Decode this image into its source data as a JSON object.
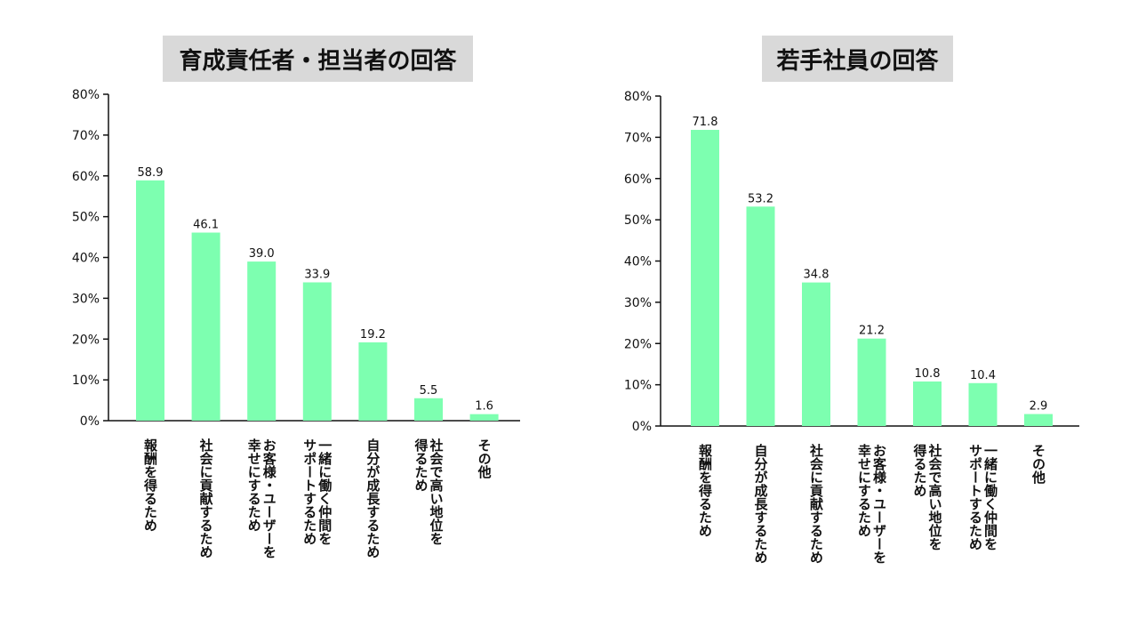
{
  "colors": {
    "bar": "#7dffb0",
    "axis": "#111111",
    "title_bg": "#d9d9d9"
  },
  "chart_data": [
    {
      "type": "bar",
      "title": "育成責任者・担当者の回答",
      "ylim": [
        0,
        80
      ],
      "yticks": [
        "0%",
        "10%",
        "20%",
        "30%",
        "40%",
        "50%",
        "60%",
        "70%",
        "80%"
      ],
      "categories": [
        [
          "報酬を得るため"
        ],
        [
          "社会に貢献するため"
        ],
        [
          "お客様・ユーザーを",
          "幸せにするため"
        ],
        [
          "一緒に働く仲間を",
          "サポートするため"
        ],
        [
          "自分が成長するため"
        ],
        [
          "社会で高い地位を",
          "得るため"
        ],
        [
          "その他"
        ]
      ],
      "values": [
        58.9,
        46.1,
        39.0,
        33.9,
        19.2,
        5.5,
        1.6
      ],
      "value_labels": [
        "58.9",
        "46.1",
        "39.0",
        "33.9",
        "19.2",
        "5.5",
        "1.6"
      ],
      "grid": false
    },
    {
      "type": "bar",
      "title": "若手社員の回答",
      "ylim": [
        0,
        80
      ],
      "yticks": [
        "0%",
        "10%",
        "20%",
        "30%",
        "40%",
        "50%",
        "60%",
        "70%",
        "80%"
      ],
      "categories": [
        [
          "報酬を得るため"
        ],
        [
          "自分が成長するため"
        ],
        [
          "社会に貢献するため"
        ],
        [
          "お客様・ユーザーを",
          "幸せにするため"
        ],
        [
          "社会で高い地位を",
          "得るため"
        ],
        [
          "一緒に働く仲間を",
          "サポートするため"
        ],
        [
          "その他"
        ]
      ],
      "values": [
        71.8,
        53.2,
        34.8,
        21.2,
        10.8,
        10.4,
        2.9
      ],
      "value_labels": [
        "71.8",
        "53.2",
        "34.8",
        "21.2",
        "10.8",
        "10.4",
        "2.9"
      ],
      "grid": false
    }
  ]
}
